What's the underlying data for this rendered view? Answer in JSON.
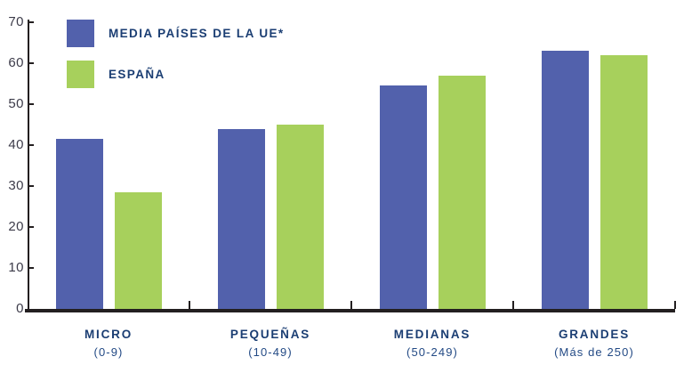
{
  "colors": {
    "axis_line": "#231F20",
    "axis_text": "#3C3B49",
    "label_text": "#1B3E73",
    "sublabel_text": "#234A85",
    "eu_bar": "#5261AC",
    "espana_bar": "#A7D05C"
  },
  "legend": {
    "position": "top-left",
    "items": [
      {
        "label": "MEDIA PAÍSES DE LA UE*",
        "color": "#5261AC"
      },
      {
        "label": "ESPAÑA",
        "color": "#A7D05C"
      }
    ]
  },
  "chart_data": {
    "type": "bar",
    "title": "",
    "xlabel": "",
    "ylabel": "",
    "grid": false,
    "legend_position": "top-left",
    "ylim": [
      0,
      70
    ],
    "yticks": [
      0,
      10,
      20,
      30,
      40,
      50,
      60,
      70
    ],
    "categories": [
      {
        "label": "MICRO",
        "sublabel": "(0-9)"
      },
      {
        "label": "PEQUEÑAS",
        "sublabel": "(10-49)"
      },
      {
        "label": "MEDIANAS",
        "sublabel": "(50-249)"
      },
      {
        "label": "GRANDES",
        "sublabel": "(Más de 250)"
      }
    ],
    "series": [
      {
        "name": "MEDIA PAÍSES DE LA UE*",
        "color": "#5261AC",
        "values": [
          41.5,
          44,
          54.5,
          63
        ]
      },
      {
        "name": "ESPAÑA",
        "color": "#A7D05C",
        "values": [
          28.5,
          45,
          57,
          62
        ]
      }
    ]
  }
}
